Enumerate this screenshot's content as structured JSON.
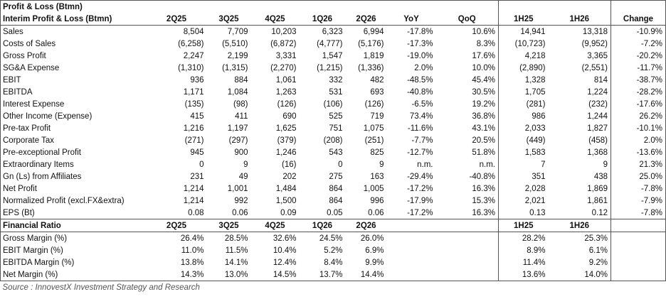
{
  "header": {
    "title": "Profit & Loss (Btmn)",
    "subtitle": "Interim Profit & Loss (Btmn)",
    "columns": [
      "2Q25",
      "3Q25",
      "4Q25",
      "1Q26",
      "2Q26",
      "YoY",
      "QoQ",
      "1H25",
      "1H26",
      "Change"
    ]
  },
  "table": {
    "rows": [
      [
        "Sales",
        "8,504",
        "7,709",
        "10,203",
        "6,323",
        "6,994",
        "-17.8%",
        "10.6%",
        "14,941",
        "13,318",
        "-10.9%"
      ],
      [
        "Costs of Sales",
        "(6,258)",
        "(5,510)",
        "(6,872)",
        "(4,777)",
        "(5,176)",
        "-17.3%",
        "8.3%",
        "(10,723)",
        "(9,952)",
        "-7.2%"
      ],
      [
        "Gross Profit",
        "2,247",
        "2,199",
        "3,331",
        "1,547",
        "1,819",
        "-19.0%",
        "17.6%",
        "4,218",
        "3,365",
        "-20.2%"
      ],
      [
        "SG&A Expense",
        "(1,310)",
        "(1,315)",
        "(2,270)",
        "(1,215)",
        "(1,336)",
        "2.0%",
        "10.0%",
        "(2,890)",
        "(2,551)",
        "-11.7%"
      ],
      [
        "EBIT",
        "936",
        "884",
        "1,061",
        "332",
        "482",
        "-48.5%",
        "45.4%",
        "1,328",
        "814",
        "-38.7%"
      ],
      [
        "EBITDA",
        "1,171",
        "1,084",
        "1,263",
        "531",
        "693",
        "-40.8%",
        "30.5%",
        "1,705",
        "1,224",
        "-28.2%"
      ],
      [
        "Interest Expense",
        "(135)",
        "(98)",
        "(126)",
        "(106)",
        "(126)",
        "-6.5%",
        "19.2%",
        "(281)",
        "(232)",
        "-17.6%"
      ],
      [
        "Other Income (Expense)",
        "415",
        "411",
        "690",
        "525",
        "719",
        "73.4%",
        "36.8%",
        "986",
        "1,244",
        "26.2%"
      ],
      [
        "Pre-tax Profit",
        "1,216",
        "1,197",
        "1,625",
        "751",
        "1,075",
        "-11.6%",
        "43.1%",
        "2,033",
        "1,827",
        "-10.1%"
      ],
      [
        "Corporate Tax",
        "(271)",
        "(297)",
        "(379)",
        "(208)",
        "(251)",
        "-7.7%",
        "20.5%",
        "(449)",
        "(458)",
        "2.0%"
      ],
      [
        "Pre-exceptional Profit",
        "945",
        "900",
        "1,246",
        "543",
        "825",
        "-12.7%",
        "51.8%",
        "1,583",
        "1,368",
        "-13.6%"
      ],
      [
        "Extraordinary Items",
        "0",
        "9",
        "(16)",
        "0",
        "9",
        "n.m.",
        "n.m.",
        "7",
        "9",
        "21.3%"
      ],
      [
        "Gn (Ls) from Affiliates",
        "231",
        "49",
        "202",
        "275",
        "163",
        "-29.4%",
        "-40.8%",
        "351",
        "438",
        "25.0%"
      ],
      [
        "Net Profit",
        "1,214",
        "1,001",
        "1,484",
        "864",
        "1,005",
        "-17.2%",
        "16.3%",
        "2,028",
        "1,869",
        "-7.8%"
      ],
      [
        "Normalized Profit (excl.FX&extra)",
        "1,214",
        "992",
        "1,500",
        "864",
        "996",
        "-17.9%",
        "15.3%",
        "2,021",
        "1,861",
        "-7.9%"
      ],
      [
        "EPS (Bt)",
        "0.08",
        "0.06",
        "0.09",
        "0.05",
        "0.06",
        "-17.2%",
        "16.3%",
        "0.13",
        "0.12",
        "-7.8%"
      ]
    ]
  },
  "ratios": {
    "header": [
      "Financial Ratio",
      "2Q25",
      "3Q25",
      "4Q25",
      "1Q26",
      "2Q26",
      "1H25",
      "1H26"
    ],
    "rows": [
      [
        "Gross Margin (%)",
        "26.4%",
        "28.5%",
        "32.6%",
        "24.5%",
        "26.0%",
        "28.2%",
        "25.3%"
      ],
      [
        "EBIT Margin (%)",
        "11.0%",
        "11.5%",
        "10.4%",
        "5.2%",
        "6.9%",
        "8.9%",
        "6.1%"
      ],
      [
        "EBITDA Margin (%)",
        "13.8%",
        "14.1%",
        "12.4%",
        "8.4%",
        "9.9%",
        "11.4%",
        "9.2%"
      ],
      [
        "Net Margin (%)",
        "14.3%",
        "13.0%",
        "14.5%",
        "13.7%",
        "14.4%",
        "13.6%",
        "14.0%"
      ]
    ]
  },
  "footer": {
    "source": "Source : InnovestX Investment Strategy and Research"
  }
}
